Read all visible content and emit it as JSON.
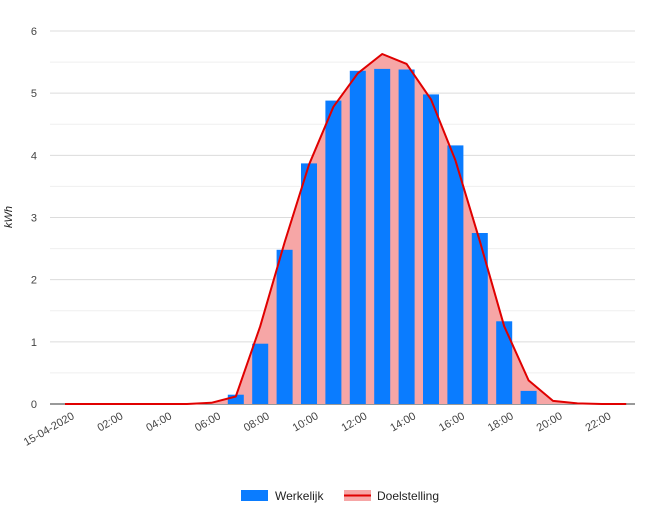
{
  "chart_data": {
    "type": "bar",
    "ylabel": "kWh",
    "ylim": [
      0,
      6
    ],
    "y_ticks": [
      "0",
      "1",
      "2",
      "3",
      "4",
      "5",
      "6"
    ],
    "x_tick_labels": [
      "15-04-2020",
      "02:00",
      "04:00",
      "06:00",
      "08:00",
      "10:00",
      "12:00",
      "14:00",
      "16:00",
      "18:00",
      "20:00",
      "22:00"
    ],
    "categories": [
      "00:00",
      "01:00",
      "02:00",
      "03:00",
      "04:00",
      "05:00",
      "06:00",
      "07:00",
      "08:00",
      "09:00",
      "10:00",
      "11:00",
      "12:00",
      "13:00",
      "14:00",
      "15:00",
      "16:00",
      "17:00",
      "18:00",
      "19:00",
      "20:00",
      "21:00",
      "22:00",
      "23:00"
    ],
    "series": [
      {
        "name": "Werkelijk",
        "kind": "bar",
        "color": "#0a7cff",
        "values": [
          0,
          0,
          0,
          0,
          0,
          0,
          0,
          0.15,
          0.97,
          2.48,
          3.87,
          4.88,
          5.36,
          5.39,
          5.38,
          4.98,
          4.16,
          2.75,
          1.33,
          0.21,
          0,
          0,
          0,
          0
        ]
      },
      {
        "name": "Doelstelling",
        "kind": "area-line",
        "color": "#e00000",
        "fill": "#f6a6a6",
        "values": [
          0,
          0,
          0,
          0,
          0,
          0,
          0.02,
          0.12,
          1.25,
          2.6,
          3.85,
          4.78,
          5.32,
          5.63,
          5.47,
          4.9,
          3.92,
          2.62,
          1.25,
          0.38,
          0.05,
          0.01,
          0,
          0
        ]
      }
    ],
    "grid": true,
    "legend_position": "bottom"
  }
}
